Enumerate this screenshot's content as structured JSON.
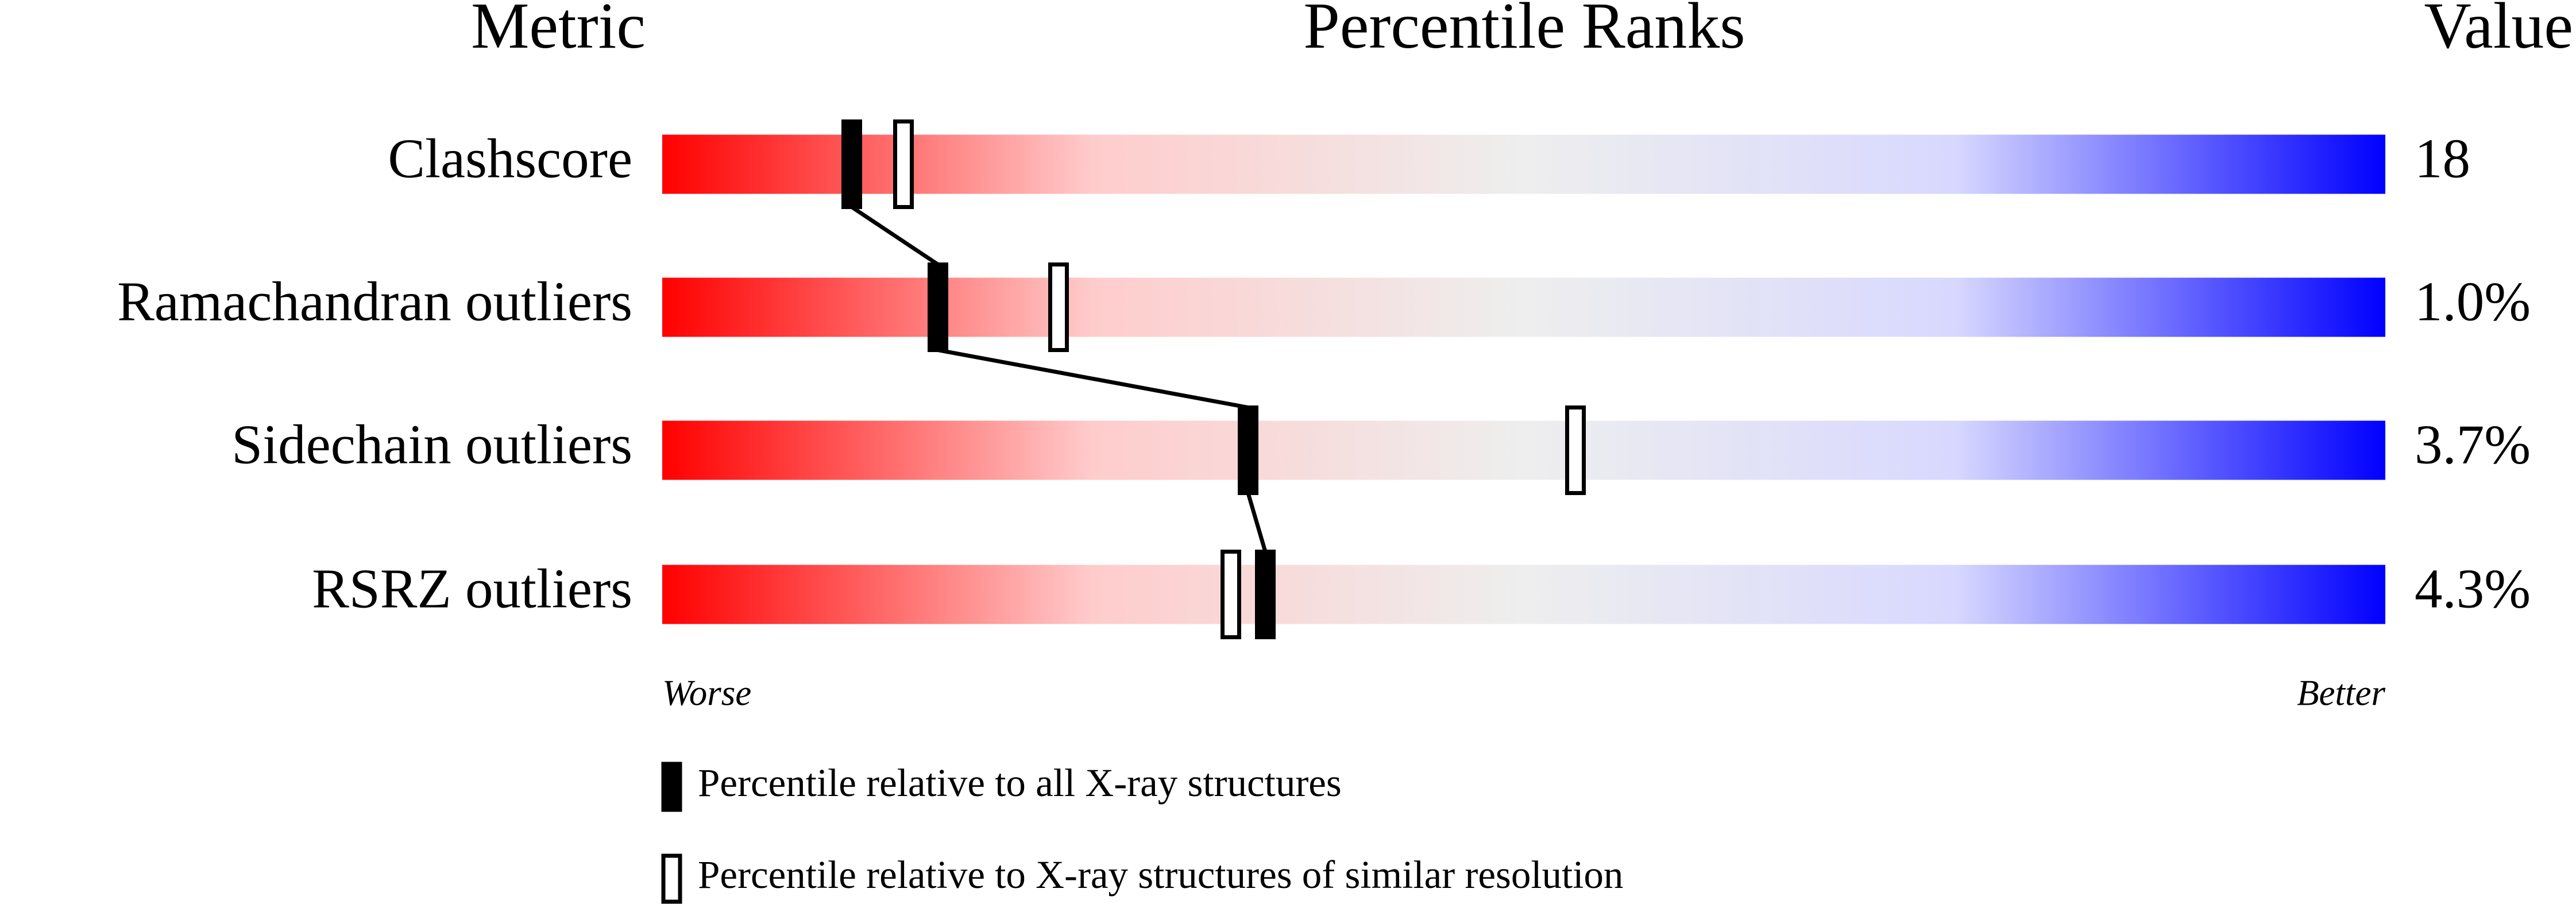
{
  "chart_data": {
    "type": "percentile-slider",
    "headers": [
      "Metric",
      "Percentile Ranks",
      "Value"
    ],
    "categories": [
      "Clashscore",
      "Ramachandran outliers",
      "Sidechain outliers",
      "RSRZ outliers"
    ],
    "metric_values": [
      "18",
      "1.0%",
      "3.7%",
      "4.3%"
    ],
    "xlim": [
      0,
      100
    ],
    "x_label_low": "Worse",
    "x_label_high": "Better",
    "gradient": [
      "#ff0000",
      "#ffcccc",
      "#eeeeee",
      "#d8d8ff",
      "#0000ff"
    ],
    "series": [
      {
        "name": "Percentile relative to all X-ray structures",
        "color": "#000000",
        "values": [
          11,
          16,
          34,
          35
        ]
      },
      {
        "name": "Percentile relative to X-ray structures of similar resolution",
        "color": "#ffffff",
        "values": [
          14,
          23,
          53,
          33
        ]
      }
    ]
  }
}
